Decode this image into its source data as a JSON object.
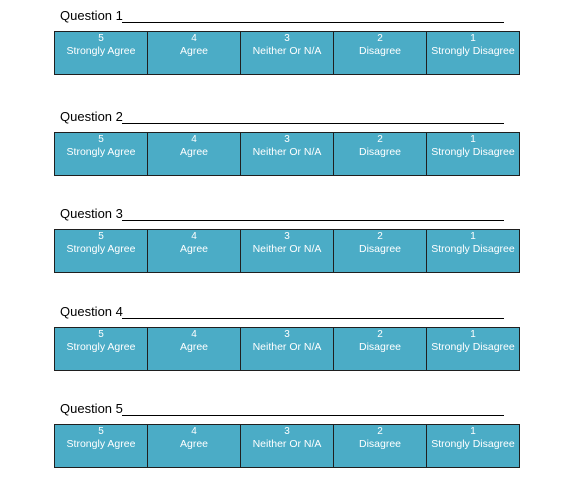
{
  "colors": {
    "cell_background": "#4bacc6",
    "cell_text": "#ffffff",
    "cell_border": "#1f1f1f"
  },
  "questions": [
    {
      "label": "Question 1",
      "scale": [
        {
          "value": "5",
          "label": "Strongly Agree"
        },
        {
          "value": "4",
          "label": "Agree"
        },
        {
          "value": "3",
          "label": "Neither Or N/A"
        },
        {
          "value": "2",
          "label": "Disagree"
        },
        {
          "value": "1",
          "label": "Strongly Disagree"
        }
      ]
    },
    {
      "label": "Question 2",
      "scale": [
        {
          "value": "5",
          "label": "Strongly Agree"
        },
        {
          "value": "4",
          "label": "Agree"
        },
        {
          "value": "3",
          "label": "Neither Or N/A"
        },
        {
          "value": "2",
          "label": "Disagree"
        },
        {
          "value": "1",
          "label": "Strongly Disagree"
        }
      ]
    },
    {
      "label": "Question 3",
      "scale": [
        {
          "value": "5",
          "label": "Strongly Agree"
        },
        {
          "value": "4",
          "label": "Agree"
        },
        {
          "value": "3",
          "label": "Neither Or N/A"
        },
        {
          "value": "2",
          "label": "Disagree"
        },
        {
          "value": "1",
          "label": "Strongly Disagree"
        }
      ]
    },
    {
      "label": "Question 4",
      "scale": [
        {
          "value": "5",
          "label": "Strongly Agree"
        },
        {
          "value": "4",
          "label": "Agree"
        },
        {
          "value": "3",
          "label": "Neither Or N/A"
        },
        {
          "value": "2",
          "label": "Disagree"
        },
        {
          "value": "1",
          "label": "Strongly Disagree"
        }
      ]
    },
    {
      "label": "Question 5",
      "scale": [
        {
          "value": "5",
          "label": "Strongly Agree"
        },
        {
          "value": "4",
          "label": "Agree"
        },
        {
          "value": "3",
          "label": "Neither Or N/A"
        },
        {
          "value": "2",
          "label": "Disagree"
        },
        {
          "value": "1",
          "label": "Strongly Disagree"
        }
      ]
    }
  ]
}
